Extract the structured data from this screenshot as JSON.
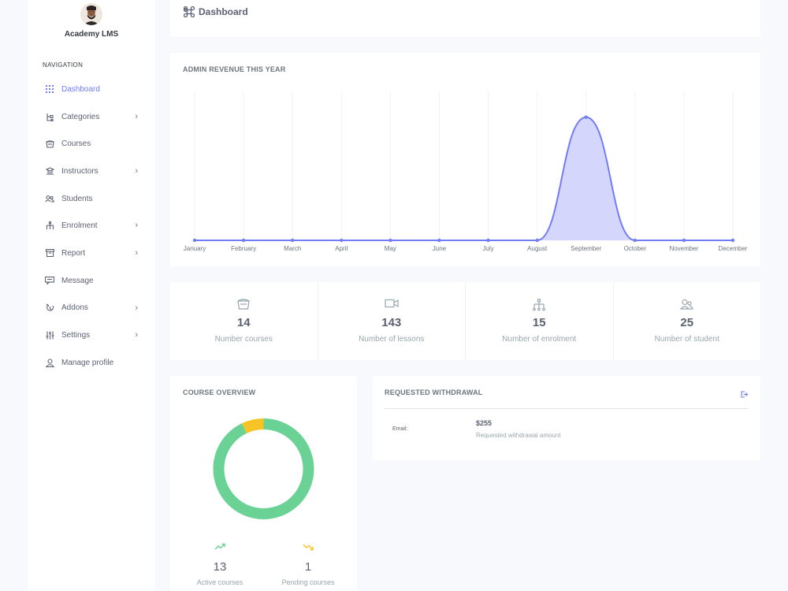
{
  "sidebar": {
    "brand": "Academy LMS",
    "nav_title": "NAVIGATION",
    "items": [
      {
        "label": "Dashboard",
        "icon": "grid-icon",
        "active": true,
        "has_children": false
      },
      {
        "label": "Categories",
        "icon": "categories-icon",
        "active": false,
        "has_children": true
      },
      {
        "label": "Courses",
        "icon": "courses-icon",
        "active": false,
        "has_children": false
      },
      {
        "label": "Instructors",
        "icon": "instructors-icon",
        "active": false,
        "has_children": true
      },
      {
        "label": "Students",
        "icon": "students-icon",
        "active": false,
        "has_children": false
      },
      {
        "label": "Enrolment",
        "icon": "enrolment-icon",
        "active": false,
        "has_children": true
      },
      {
        "label": "Report",
        "icon": "report-icon",
        "active": false,
        "has_children": true
      },
      {
        "label": "Message",
        "icon": "message-icon",
        "active": false,
        "has_children": false
      },
      {
        "label": "Addons",
        "icon": "addons-icon",
        "active": false,
        "has_children": true
      },
      {
        "label": "Settings",
        "icon": "settings-icon",
        "active": false,
        "has_children": true
      },
      {
        "label": "Manage profile",
        "icon": "profile-icon",
        "active": false,
        "has_children": false
      }
    ]
  },
  "header": {
    "title": "Dashboard",
    "icon": "command-icon"
  },
  "revenue": {
    "title": "ADMIN REVENUE THIS YEAR"
  },
  "chart_data": {
    "type": "area",
    "title": "ADMIN REVENUE THIS YEAR",
    "categories": [
      "January",
      "February",
      "March",
      "April",
      "May",
      "June",
      "July",
      "August",
      "September",
      "October",
      "November",
      "December"
    ],
    "series": [
      {
        "values": [
          0,
          0,
          0,
          0,
          0,
          0,
          0,
          0,
          255,
          0,
          0,
          0
        ]
      }
    ],
    "ylim": [
      0,
      310
    ],
    "grid": "vertical",
    "legend": "none",
    "color": "#727cf5",
    "fill": "#d4d7fb"
  },
  "stats": [
    {
      "value": "14",
      "label": "Number courses",
      "icon": "courses-icon"
    },
    {
      "value": "143",
      "label": "Number of lessons",
      "icon": "video-icon"
    },
    {
      "value": "15",
      "label": "Number of enrolment",
      "icon": "enrolment-icon"
    },
    {
      "value": "25",
      "label": "Number of student",
      "icon": "students-icon"
    }
  ],
  "overview": {
    "title": "COURSE OVERVIEW",
    "active": {
      "value": "13",
      "label": "Active courses",
      "color": "#6ad295",
      "icon": "trend-up-icon"
    },
    "pending": {
      "value": "1",
      "label": "Pending courses",
      "color": "#f7c325",
      "icon": "trend-down-icon"
    }
  },
  "withdrawal": {
    "title": "REQUESTED WITHDRAWAL",
    "email_label": "Email:",
    "amount": "$255",
    "amount_label": "Requested withdrawal amount",
    "icon": "exit-icon"
  },
  "colors": {
    "accent": "#727cf5",
    "success": "#6ad295",
    "warning": "#f7c325"
  }
}
